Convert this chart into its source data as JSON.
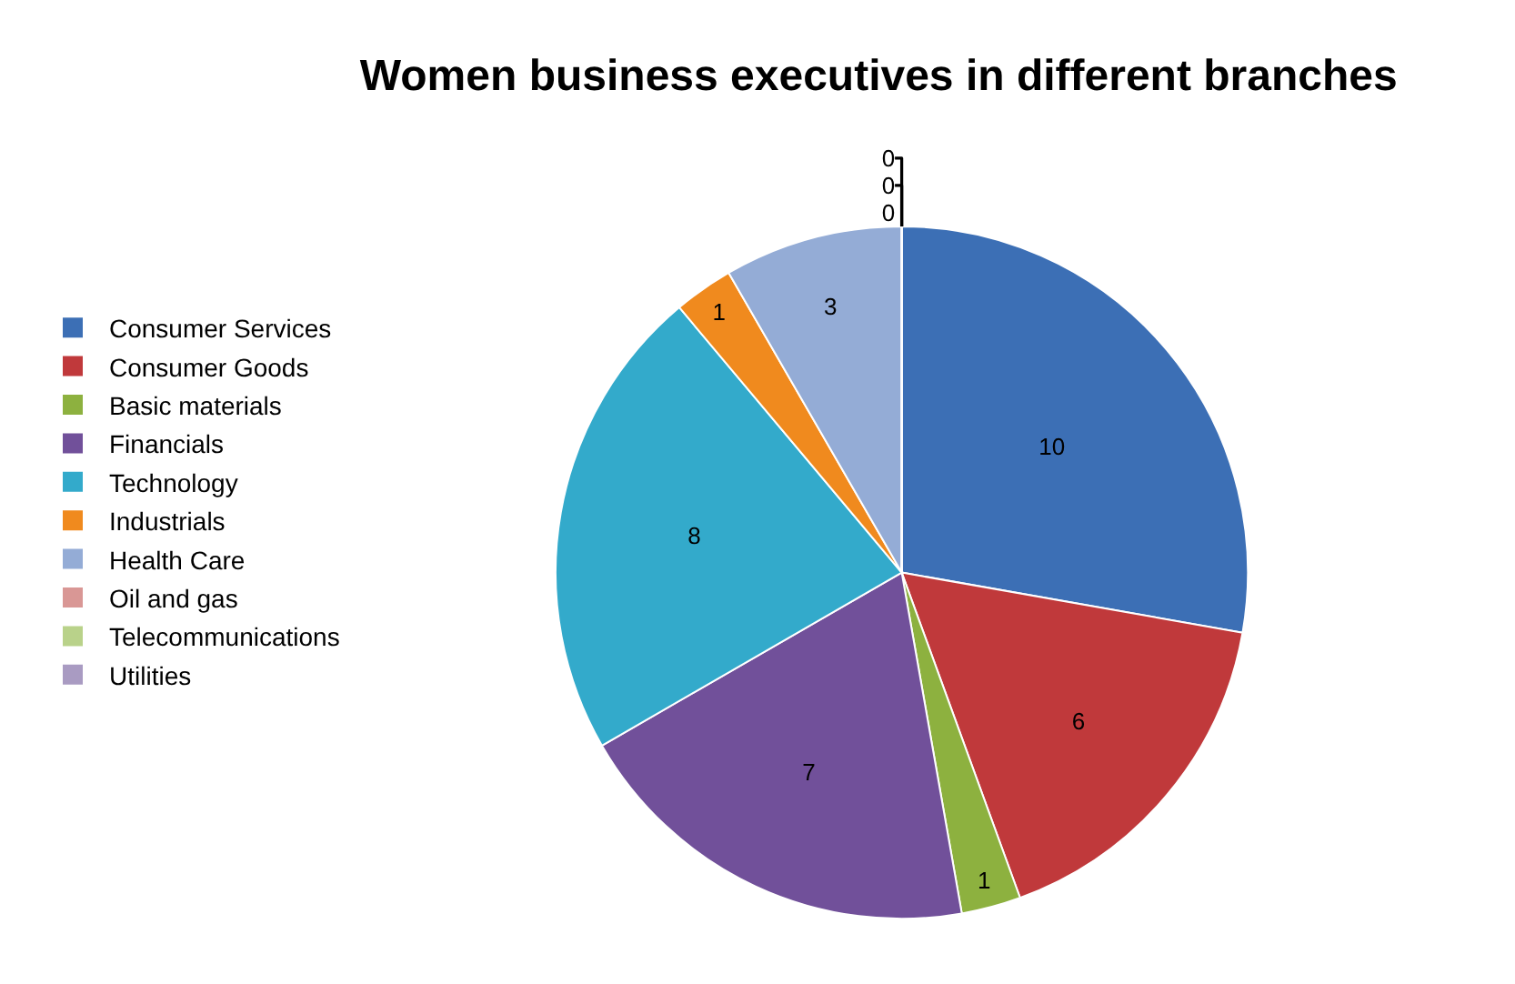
{
  "chart_data": {
    "type": "pie",
    "title": "Women business executives in different branches",
    "categories": [
      "Consumer Services",
      "Consumer Goods",
      "Basic materials",
      "Financials",
      "Technology",
      "Industrials",
      "Health Care",
      "Oil and gas",
      "Telecommunications",
      "Utilities"
    ],
    "values": [
      10,
      6,
      1,
      7,
      8,
      1,
      3,
      0,
      0,
      0
    ],
    "colors": [
      "#3c6fb5",
      "#c0393b",
      "#8db13f",
      "#71509a",
      "#33aacb",
      "#f08a1e",
      "#94acd6",
      "#d99795",
      "#b9d28a",
      "#a99bc2"
    ],
    "value_labels": [
      "10",
      "6",
      "1",
      "7",
      "8",
      "1",
      "3",
      "0",
      "0",
      "0"
    ],
    "legend": "left"
  }
}
